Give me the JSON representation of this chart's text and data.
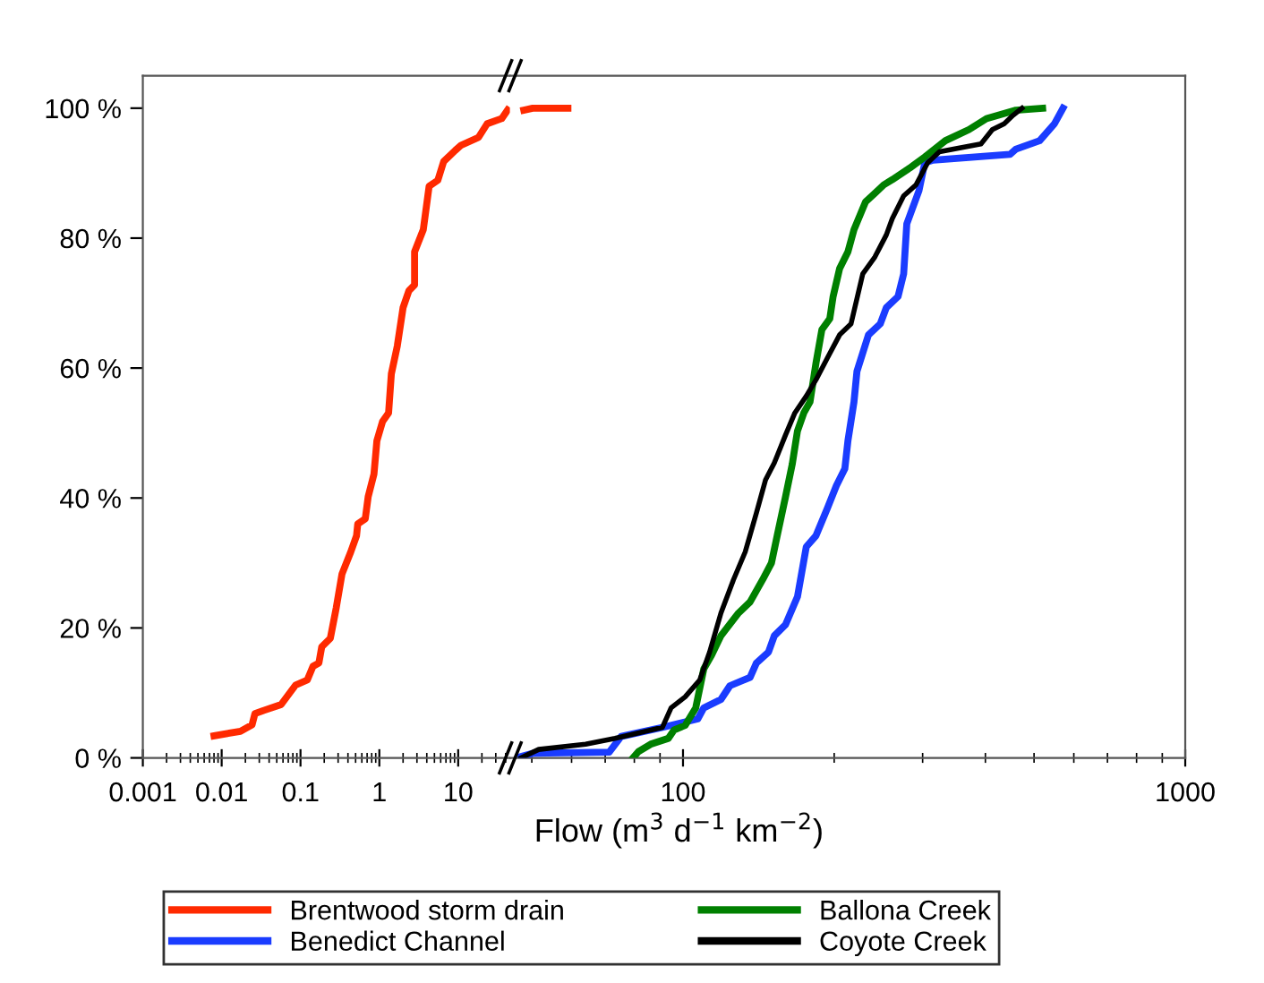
{
  "chart_data": [
    {
      "type": "line",
      "log": "x",
      "legend": "bottom",
      "grid": false,
      "marker": "none",
      "line_style": "solid",
      "xlim": [
        0.001,
        45.3
      ],
      "ylim": [
        0,
        105
      ],
      "xticks": [
        0.001,
        {
          "value": 0.002,
          "label": null
        },
        {
          "value": 0.003,
          "label": null
        },
        {
          "value": 0.004,
          "label": null
        },
        {
          "value": 0.005,
          "label": null
        },
        {
          "value": 0.006,
          "label": null
        },
        {
          "value": 0.007,
          "label": null
        },
        {
          "value": 0.008,
          "label": null
        },
        {
          "value": 0.009,
          "label": null
        },
        0.01,
        {
          "value": 0.02,
          "label": null
        },
        {
          "value": 0.03,
          "label": null
        },
        {
          "value": 0.04,
          "label": null
        },
        {
          "value": 0.05,
          "label": null
        },
        {
          "value": 0.06,
          "label": null
        },
        {
          "value": 0.07,
          "label": null
        },
        {
          "value": 0.08,
          "label": null
        },
        {
          "value": 0.09,
          "label": null
        },
        0.1,
        {
          "value": 0.2,
          "label": null
        },
        {
          "value": 0.3,
          "label": null
        },
        {
          "value": 0.4,
          "label": null
        },
        {
          "value": 0.5,
          "label": null
        },
        {
          "value": 0.6,
          "label": null
        },
        {
          "value": 0.7,
          "label": null
        },
        {
          "value": 0.8,
          "label": null
        },
        {
          "value": 0.9,
          "label": null
        },
        1,
        {
          "value": 2,
          "label": null
        },
        {
          "value": 3,
          "label": null
        },
        {
          "value": 4,
          "label": null
        },
        {
          "value": 5,
          "label": null
        },
        {
          "value": 6,
          "label": null
        },
        {
          "value": 7,
          "label": null
        },
        {
          "value": 8,
          "label": null
        },
        {
          "value": 9,
          "label": null
        },
        10,
        {
          "value": 20,
          "label": null
        },
        {
          "value": 30,
          "label": null
        },
        {
          "value": 40,
          "label": null
        }
      ],
      "yticks": [
        {
          "value": 0,
          "label": "0 %"
        },
        {
          "value": 20,
          "label": "20 %"
        },
        {
          "value": 40,
          "label": "40 %"
        },
        {
          "value": 60,
          "label": "60 %"
        },
        {
          "value": 80,
          "label": "80 %"
        },
        {
          "value": 100,
          "label": "100 %"
        }
      ],
      "series": [
        {
          "name": "Brentwood storm drain",
          "color": "#ff2a00",
          "x": [
            0.008,
            0.0173,
            0.0243,
            0.0264,
            0.034,
            0.0567,
            0.0866,
            0.122,
            0.144,
            0.171,
            0.186,
            0.239,
            0.284,
            0.336,
            0.434,
            0.514,
            0.532,
            0.663,
            0.722,
            0.855,
            0.931,
            1.1,
            1.31,
            1.42,
            1.69,
            2.0,
            2.37,
            2.8,
            2.8,
            3.61,
            4.28,
            5.52,
            6.55,
            9.18,
            10.9,
            18.1,
            23.3,
            35.7,
            42.3
          ],
          "values": [
            3.4,
            4.1,
            5.1,
            6.8,
            7.3,
            8.2,
            11.2,
            12.0,
            14.1,
            14.6,
            17.1,
            18.4,
            23.1,
            28.3,
            31.7,
            34.2,
            36.0,
            36.8,
            40.2,
            43.7,
            48.8,
            51.8,
            53.1,
            59.1,
            63.4,
            69.3,
            71.9,
            72.8,
            77.9,
            81.3,
            88.0,
            88.9,
            91.8,
            93.5,
            94.3,
            95.5,
            97.6,
            98.4,
            99.7
          ]
        }
      ]
    },
    {
      "type": "line",
      "log": "x",
      "legend": "bottom",
      "grid": false,
      "marker": "none",
      "line_style": "solid",
      "tick_labels": "x",
      "xlabel": "Flow (m$^{3}$ d$^{−1}$ km$^{−2}$)",
      "xlim": [
        45.3,
        1000
      ],
      "ylim": [
        0,
        105
      ],
      "xticks": [
        {
          "value": 50,
          "label": null
        },
        {
          "value": 60,
          "label": null
        },
        {
          "value": 70,
          "label": null
        },
        {
          "value": 80,
          "label": null
        },
        {
          "value": 90,
          "label": null
        },
        100,
        {
          "value": 200,
          "label": null
        },
        {
          "value": 300,
          "label": null
        },
        {
          "value": 400,
          "label": null
        },
        {
          "value": 500,
          "label": null
        },
        {
          "value": 600,
          "label": null
        },
        {
          "value": 700,
          "label": null
        },
        {
          "value": 800,
          "label": null
        },
        {
          "value": 900,
          "label": null
        },
        1000
      ],
      "series": [
        {
          "color": "#ff2a00",
          "x": [
            48.2,
            50.2,
            59
          ],
          "values": [
            99.7,
            100,
            100
          ]
        },
        {
          "name": "Benedict Channel",
          "color": "#1a3cff",
          "x": [
            47.6,
            50.2,
            71.3,
            75.3,
            91,
            107,
            110,
            119,
            124,
            136,
            140,
            148,
            152,
            160,
            169,
            176,
            184,
            194,
            202,
            210,
            213,
            219,
            222,
            234,
            247,
            254,
            268,
            275,
            279,
            295,
            303,
            315,
            448,
            460,
            513,
            549,
            571
          ],
          "values": [
            0.2,
            0.7,
            0.9,
            3.3,
            4.7,
            6.0,
            7.7,
            9.0,
            11.1,
            12.4,
            14.6,
            16.3,
            18.8,
            20.5,
            24.8,
            32.5,
            34.2,
            38.5,
            41.9,
            44.5,
            48.8,
            54.8,
            59.5,
            65.1,
            66.8,
            69.3,
            71.0,
            74.5,
            82.2,
            87.3,
            91.6,
            92.0,
            92.9,
            93.7,
            95.0,
            97.6,
            100
          ]
        },
        {
          "name": "Ballona Creek",
          "color": "#008000",
          "x": [
            79.5,
            81.6,
            86.2,
            93.5,
            96,
            101,
            106,
            110,
            114,
            119,
            129,
            136,
            144,
            150,
            154,
            160,
            165,
            169,
            174,
            179,
            184,
            189,
            196,
            199,
            205,
            213,
            219,
            231,
            241,
            251,
            261,
            283,
            303,
            333,
            371,
            402,
            460,
            520
          ],
          "values": [
            0,
            1.0,
            2.1,
            3.0,
            4.3,
            5.0,
            7.7,
            13.7,
            15.8,
            18.8,
            22.3,
            24.0,
            27.4,
            30.0,
            34.2,
            40.2,
            45.2,
            50.3,
            53.1,
            54.8,
            60.8,
            65.9,
            67.6,
            71.0,
            75.3,
            77.9,
            81.3,
            85.6,
            86.9,
            88.2,
            89.0,
            90.8,
            92.5,
            95.0,
            96.7,
            98.4,
            99.7,
            100
          ]
        },
        {
          "name": "Coyote Creek",
          "color": "#000000",
          "x": [
            47.6,
            51.6,
            64,
            73.2,
            91,
            94.7,
            101,
            108,
            113,
            119,
            126,
            133,
            140,
            146,
            152,
            160,
            167,
            176,
            184,
            194,
            205,
            216,
            228,
            241,
            254,
            261,
            275,
            291,
            307,
            324,
            392,
            413,
            436,
            454,
            473
          ],
          "values": [
            0,
            1.3,
            2.1,
            3.0,
            4.7,
            7.7,
            9.4,
            12.0,
            16.3,
            22.3,
            27.4,
            31.7,
            37.7,
            42.8,
            45.4,
            49.7,
            53.1,
            55.7,
            58.2,
            61.6,
            65.1,
            66.8,
            74.5,
            77.1,
            80.5,
            83.0,
            86.5,
            88.2,
            91.6,
            93.3,
            94.5,
            96.7,
            97.6,
            98.9,
            100
          ]
        }
      ]
    }
  ]
}
